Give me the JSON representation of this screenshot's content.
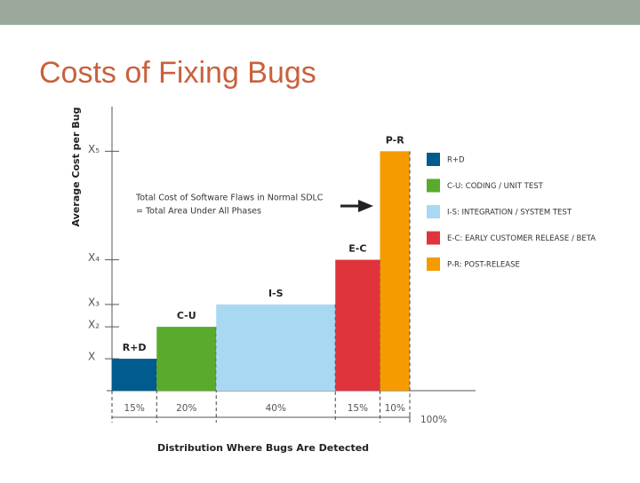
{
  "slide_title": "Costs of Fixing Bugs",
  "chart_data": {
    "type": "bar",
    "ylabel": "Average Cost per Bug",
    "xlabel": "Distribution Where Bugs Are Detected",
    "annotation": [
      "Total Cost of Software Flaws in Normal SDLC",
      "= Total Area Under All Phases"
    ],
    "categories": [
      "R+D",
      "C-U",
      "I-S",
      "E-C",
      "P-R"
    ],
    "values": [
      1,
      2,
      2.7,
      4.1,
      7.5
    ],
    "widths": [
      15,
      20,
      40,
      15,
      10
    ],
    "width_labels": [
      "15%",
      "20%",
      "40%",
      "15%",
      "10%"
    ],
    "colors": [
      "#005b8e",
      "#5aab2c",
      "#a9d9f2",
      "#e0333c",
      "#f59b00"
    ],
    "legend": [
      "R+D",
      "C-U: CODING / UNIT TEST",
      "I-S: INTEGRATION / SYSTEM TEST",
      "E-C: EARLY CUSTOMER RELEASE / BETA",
      "P-R: POST-RELEASE"
    ],
    "ylim": [
      0,
      8.9
    ],
    "yticks": [
      {
        "value": 1,
        "label": "X"
      },
      {
        "value": 2,
        "label": "X₂"
      },
      {
        "value": 2.7,
        "label": "X₃"
      },
      {
        "value": 4.1,
        "label": "X₄"
      },
      {
        "value": 7.5,
        "label": "X₅"
      }
    ],
    "xlim": [
      0,
      100
    ],
    "xticks": [
      {
        "value": 100,
        "label": "100%"
      }
    ]
  }
}
